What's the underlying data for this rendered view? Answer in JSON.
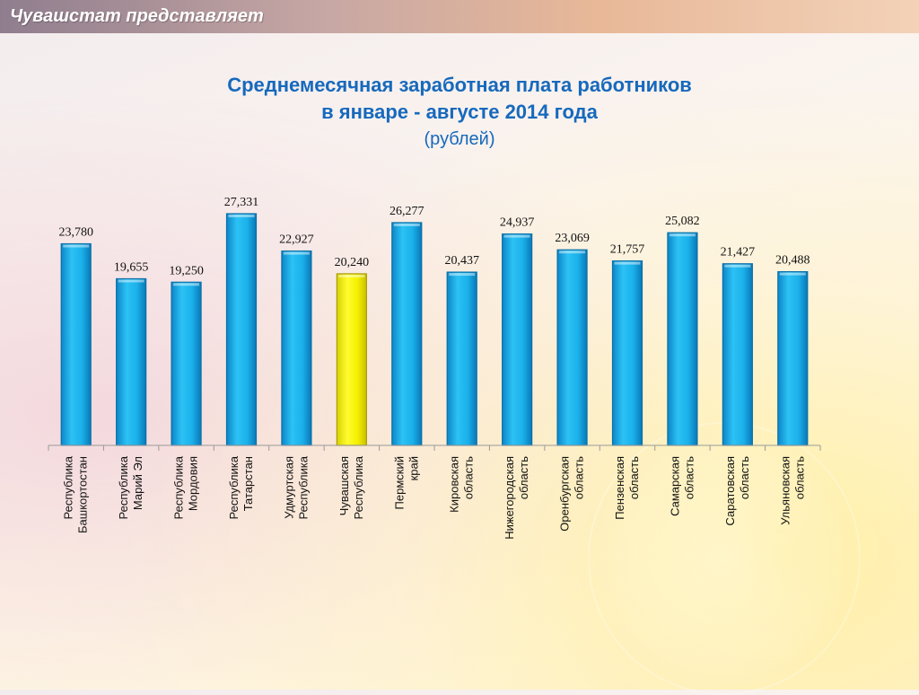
{
  "header": {
    "title": "Чувашстат представляет"
  },
  "chart_data": {
    "type": "bar",
    "title": [
      "Среднемесячная заработная плата работников",
      "в январе - августе 2014 года"
    ],
    "subtitle": "(рублей)",
    "categories": [
      [
        "Республика",
        "Башкортостан"
      ],
      [
        "Республика",
        "Марий Эл"
      ],
      [
        "Республика",
        "Мордовия"
      ],
      [
        "Республика",
        "Татарстан"
      ],
      [
        "Удмуртская",
        "Республика"
      ],
      [
        "Чувашская",
        "Республика"
      ],
      [
        "Пермский",
        "край"
      ],
      [
        "Кировская",
        "область"
      ],
      [
        "Нижегородская",
        "область"
      ],
      [
        "Оренбургская",
        "область"
      ],
      [
        "Пензенская",
        "область"
      ],
      [
        "Самарская",
        "область"
      ],
      [
        "Саратовская",
        "область"
      ],
      [
        "Ульяновская",
        "область"
      ]
    ],
    "values": [
      23780,
      19655,
      19250,
      27331,
      22927,
      20240,
      26277,
      20437,
      24937,
      23069,
      21757,
      25082,
      21427,
      20488
    ],
    "value_labels": [
      "23,780",
      "19,655",
      "19,250",
      "27,331",
      "22,927",
      "20,240",
      "26,277",
      "20,437",
      "24,937",
      "23,069",
      "21,757",
      "25,082",
      "21,427",
      "20,488"
    ],
    "highlight_index": 5,
    "colors": {
      "bar": "#1ab0ea",
      "bar_edge": "#0a70a8",
      "highlight": "#f4f000",
      "highlight_edge": "#a89d00",
      "axis": "#9a9a9a"
    },
    "ylim": [
      0,
      27331
    ],
    "grid": false
  }
}
